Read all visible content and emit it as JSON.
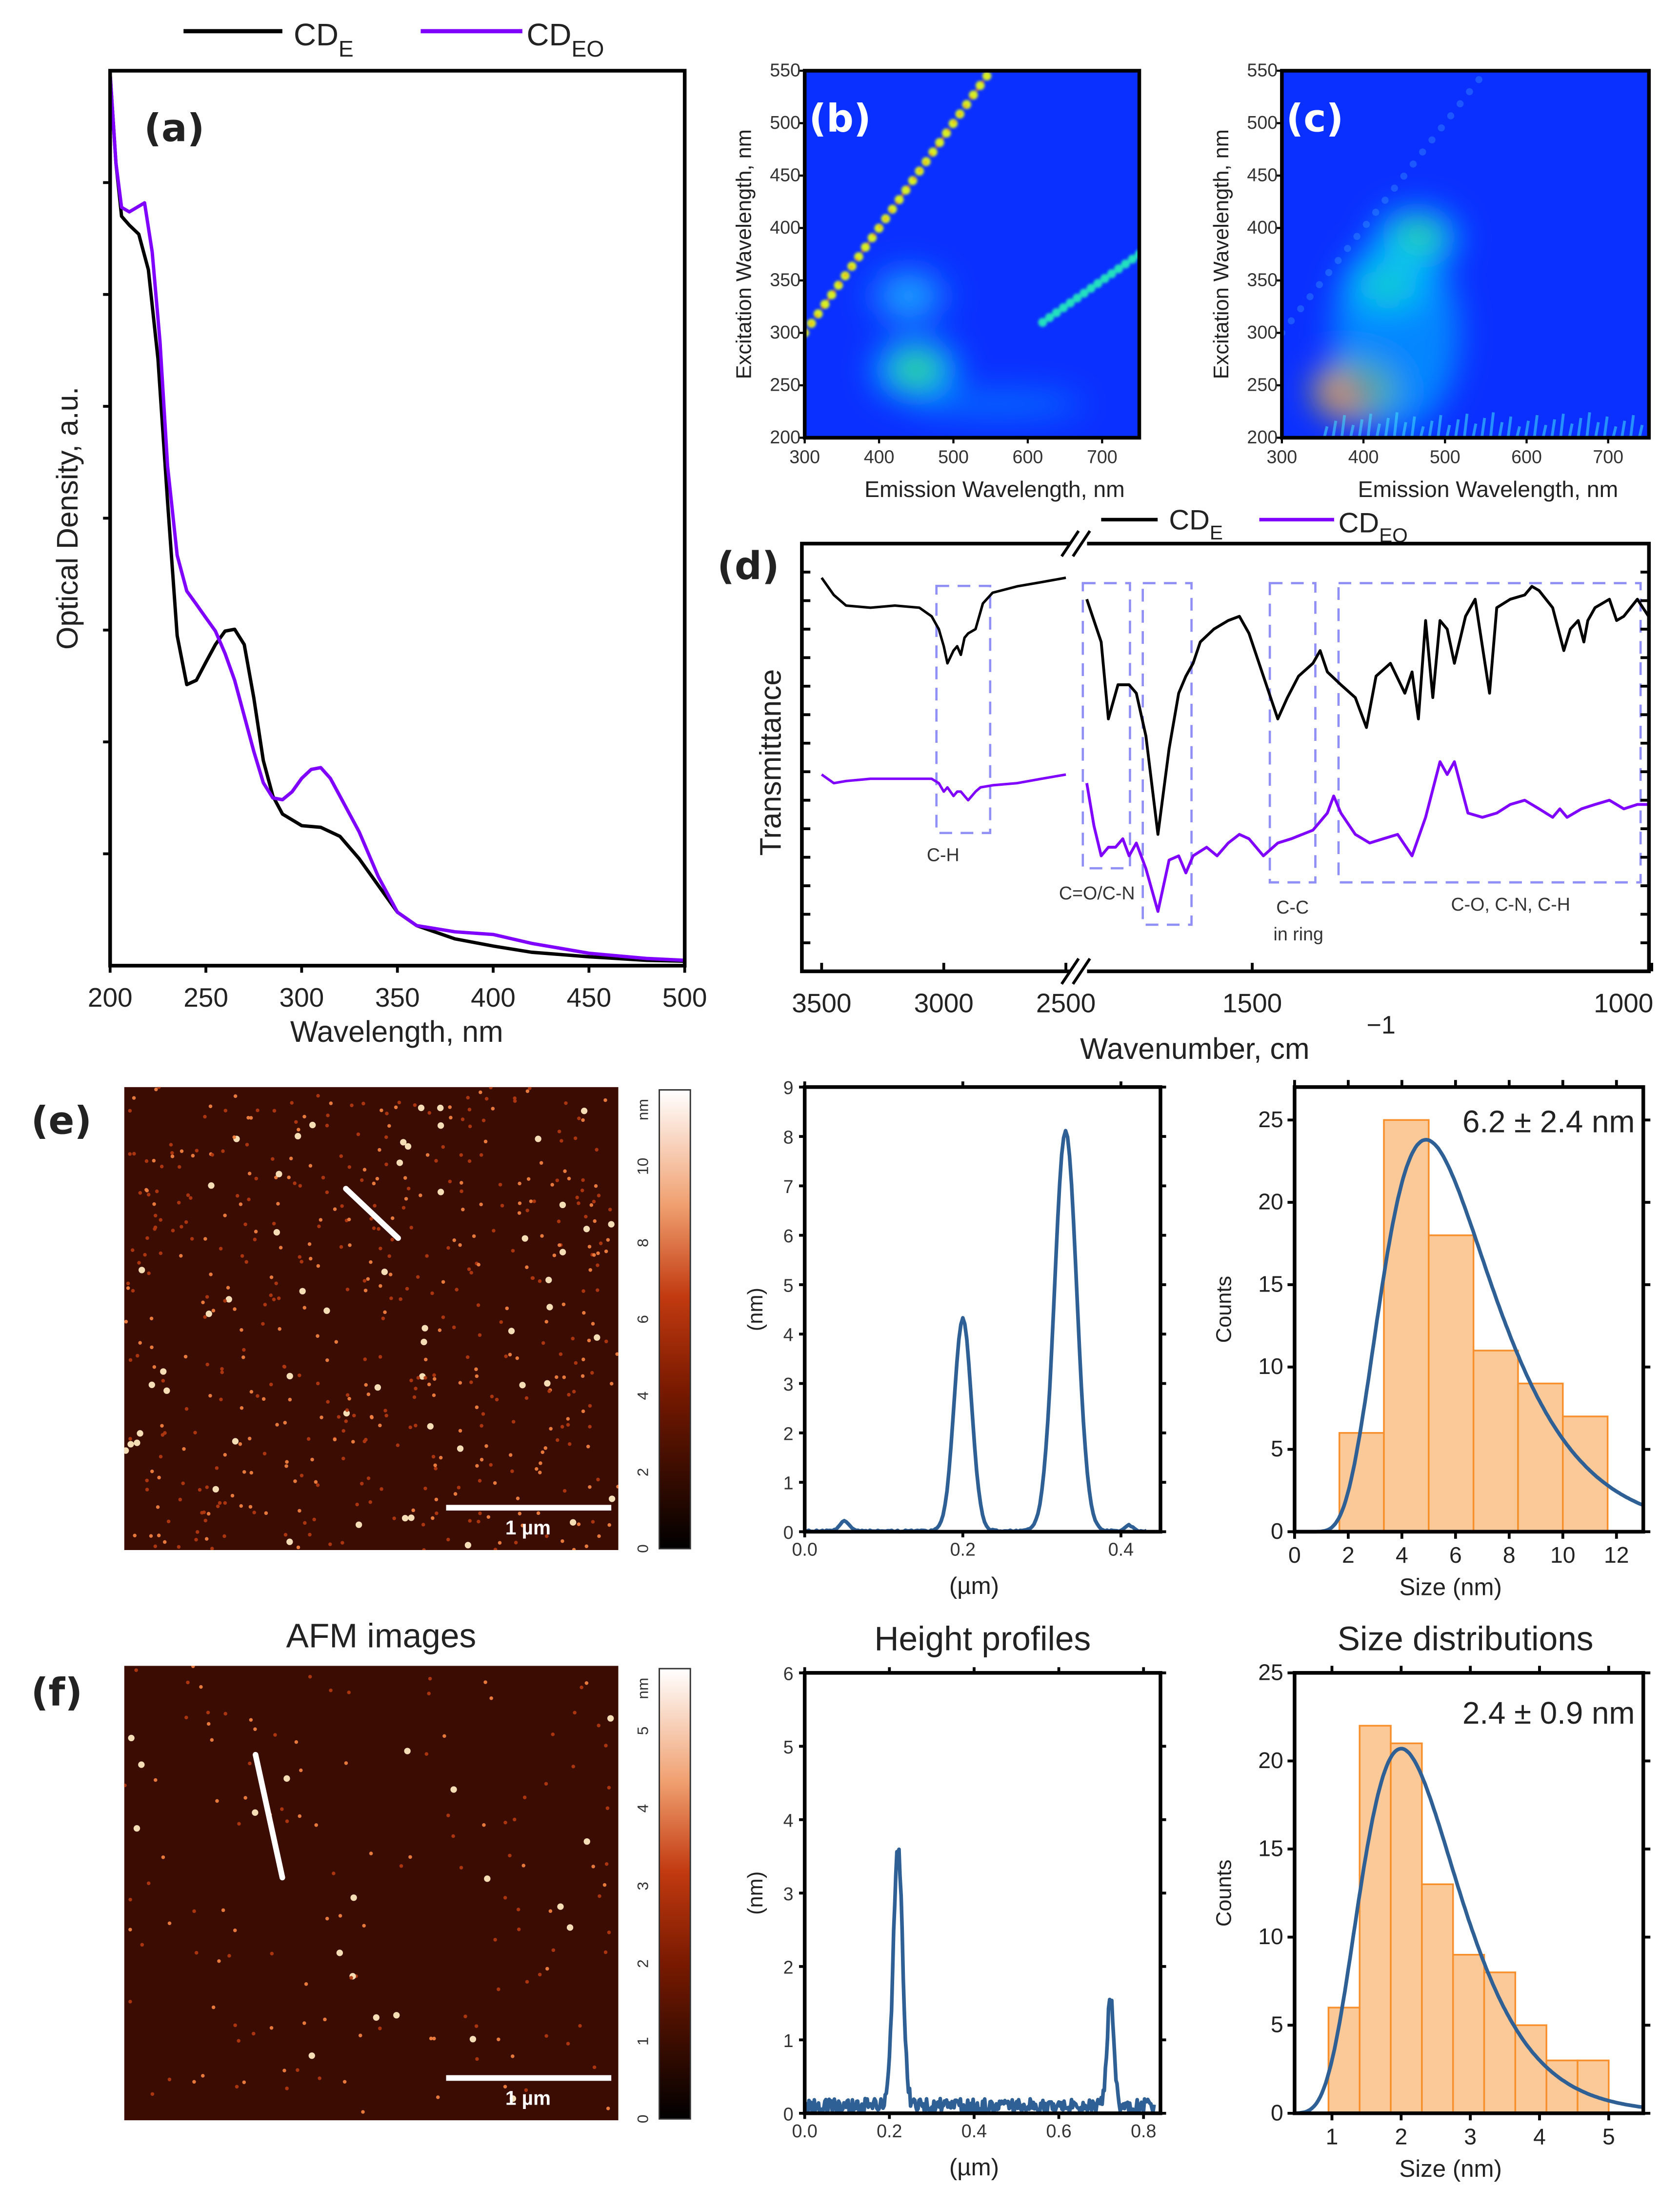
{
  "legend": {
    "series": [
      {
        "base": "CD",
        "sub": "E",
        "color": "#000000"
      },
      {
        "base": "CD",
        "sub": "EO",
        "color": "#7f00ff"
      }
    ]
  },
  "panel_labels": {
    "a": "(a)",
    "b": "(b)",
    "c": "(c)",
    "d": "(d)",
    "e": "(e)",
    "f": "(f)"
  },
  "column_titles": {
    "afm": "AFM images",
    "height": "Height profiles",
    "size": "Size distributions"
  },
  "afm": {
    "e": {
      "scale_bar": "1 µm",
      "colorbar_unit": "nm",
      "colorbar_ticks": [
        "0",
        "2",
        "4",
        "6",
        "8",
        "10"
      ],
      "colorbar_max": 12
    },
    "f": {
      "scale_bar": "1 µm",
      "colorbar_unit": "nm",
      "colorbar_ticks": [
        "0",
        "1",
        "2",
        "3",
        "4",
        "5"
      ],
      "colorbar_max": 5.8
    },
    "colors": {
      "background": "#3a0c02",
      "particle": "#ffe9c0",
      "line": "#ffffff"
    }
  },
  "chart_data": [
    {
      "id": "a",
      "type": "line",
      "xlabel": "Wavelength, nm",
      "ylabel": "Optical Density, a.u.",
      "xlim": [
        200,
        500
      ],
      "ylim": [
        0,
        1
      ],
      "x_ticks": [
        "200",
        "250",
        "300",
        "350",
        "400",
        "450",
        "500"
      ],
      "series": [
        {
          "name": "CD_E",
          "color": "#000000",
          "x": [
            200,
            203,
            206,
            210,
            215,
            220,
            225,
            230,
            235,
            240,
            245,
            250,
            255,
            260,
            265,
            270,
            275,
            280,
            285,
            290,
            300,
            310,
            320,
            330,
            340,
            350,
            360,
            380,
            400,
            420,
            450,
            480,
            500
          ],
          "y": [
            1.0,
            0.9,
            0.84,
            0.83,
            0.82,
            0.78,
            0.68,
            0.52,
            0.37,
            0.315,
            0.32,
            0.34,
            0.36,
            0.375,
            0.377,
            0.36,
            0.3,
            0.23,
            0.19,
            0.17,
            0.157,
            0.155,
            0.145,
            0.12,
            0.09,
            0.06,
            0.045,
            0.03,
            0.022,
            0.015,
            0.01,
            0.006,
            0.005
          ]
        },
        {
          "name": "CD_EO",
          "color": "#7f00ff",
          "x": [
            200,
            203,
            206,
            210,
            214,
            218,
            222,
            226,
            230,
            235,
            240,
            245,
            250,
            255,
            260,
            265,
            270,
            275,
            280,
            285,
            290,
            295,
            300,
            305,
            310,
            315,
            320,
            330,
            340,
            350,
            360,
            380,
            400,
            420,
            450,
            480,
            500
          ],
          "y": [
            1.0,
            0.9,
            0.85,
            0.845,
            0.85,
            0.855,
            0.8,
            0.7,
            0.56,
            0.46,
            0.42,
            0.405,
            0.39,
            0.375,
            0.35,
            0.32,
            0.28,
            0.24,
            0.205,
            0.188,
            0.186,
            0.195,
            0.21,
            0.22,
            0.222,
            0.21,
            0.19,
            0.15,
            0.1,
            0.06,
            0.045,
            0.038,
            0.035,
            0.025,
            0.014,
            0.008,
            0.006
          ]
        }
      ]
    },
    {
      "id": "b",
      "type": "heatmap",
      "xlabel": "Emission Wavelength, nm",
      "ylabel": "Excitation Wavelength, nm",
      "xlim": [
        300,
        750
      ],
      "ylim": [
        200,
        550
      ],
      "x_ticks": [
        "300",
        "400",
        "500",
        "600",
        "700"
      ],
      "y_ticks": [
        "200",
        "250",
        "300",
        "350",
        "400",
        "450",
        "500",
        "550"
      ],
      "features": [
        {
          "name": "rayleigh-scatter",
          "em": [
            300,
            545
          ],
          "ex": [
            300,
            545
          ],
          "intensity": 0.75
        },
        {
          "name": "second-order-scatter",
          "em": [
            620,
            750
          ],
          "ex": [
            310,
            375
          ],
          "intensity": 0.5
        },
        {
          "name": "peak-1",
          "em": 450,
          "ex": 265,
          "intensity": 0.55
        },
        {
          "name": "peak-2",
          "em": 440,
          "ex": 335,
          "intensity": 0.35
        }
      ]
    },
    {
      "id": "c",
      "type": "heatmap",
      "xlabel": "Emission Wavelength, nm",
      "ylabel": "Excitation Wavelength, nm",
      "xlim": [
        300,
        750
      ],
      "ylim": [
        200,
        550
      ],
      "x_ticks": [
        "300",
        "400",
        "500",
        "600",
        "700"
      ],
      "y_ticks": [
        "200",
        "250",
        "300",
        "350",
        "400",
        "450",
        "500",
        "550"
      ],
      "features": [
        {
          "name": "peak-1",
          "em": 390,
          "ex": 245,
          "intensity": 1.0
        },
        {
          "name": "peak-2",
          "em": 430,
          "ex": 345,
          "intensity": 0.6
        },
        {
          "name": "peak-3",
          "em": 465,
          "ex": 390,
          "intensity": 0.55
        }
      ]
    },
    {
      "id": "d",
      "type": "line",
      "xlabel": "Wavenumber, cm",
      "xlabel_sup": "−1",
      "ylabel": "Transmittance",
      "x_break": [
        2500,
        1707
      ],
      "xlim_left": [
        3500,
        2480
      ],
      "xlim_right": [
        1707,
        980
      ],
      "ylim": [
        0,
        1
      ],
      "x_ticks_left": [
        "3500",
        "3000",
        "2500"
      ],
      "x_ticks_right": [
        "1500",
        "1000"
      ],
      "bands": [
        {
          "label": "C-H",
          "range": [
            3030,
            2810
          ]
        },
        {
          "label": "C=O/C-N",
          "range": [
            1712,
            1653
          ]
        },
        {
          "label": "",
          "range": [
            1637,
            1576
          ]
        },
        {
          "label": "C-C",
          "label2": "in ring",
          "range": [
            1478,
            1421
          ]
        },
        {
          "label": "C-O, C-N, C-H",
          "range": [
            1392,
            1014
          ]
        }
      ],
      "series": [
        {
          "name": "CD_E",
          "color": "#000000",
          "left": {
            "x": [
              3500,
              3450,
              3400,
              3300,
              3200,
              3100,
              3050,
              3020,
              3000,
              2985,
              2960,
              2945,
              2930,
              2915,
              2900,
              2870,
              2840,
              2800,
              2700,
              2600,
              2500
            ],
            "y": [
              0.92,
              0.88,
              0.855,
              0.85,
              0.855,
              0.85,
              0.83,
              0.8,
              0.76,
              0.72,
              0.75,
              0.76,
              0.74,
              0.78,
              0.79,
              0.8,
              0.86,
              0.885,
              0.9,
              0.91,
              0.92
            ]
          },
          "right": {
            "x": [
              1707,
              1689,
              1680,
              1668,
              1654,
              1645,
              1633,
              1618,
              1604,
              1592,
              1583,
              1574,
              1565,
              1548,
              1530,
              1516,
              1504,
              1486,
              1468,
              1456,
              1442,
              1424,
              1415,
              1406,
              1389,
              1371,
              1357,
              1345,
              1327,
              1309,
              1300,
              1292,
              1283,
              1274,
              1265,
              1256,
              1247,
              1233,
              1221,
              1203,
              1194,
              1177,
              1159,
              1150,
              1141,
              1124,
              1110,
              1102,
              1092,
              1085,
              1080,
              1071,
              1053,
              1044,
              1035,
              1018,
              1004
            ],
            "y": [
              0.87,
              0.77,
              0.59,
              0.67,
              0.67,
              0.65,
              0.55,
              0.32,
              0.52,
              0.65,
              0.69,
              0.72,
              0.77,
              0.8,
              0.82,
              0.83,
              0.79,
              0.69,
              0.59,
              0.64,
              0.69,
              0.72,
              0.75,
              0.7,
              0.67,
              0.64,
              0.57,
              0.69,
              0.72,
              0.65,
              0.7,
              0.59,
              0.82,
              0.64,
              0.82,
              0.8,
              0.72,
              0.83,
              0.87,
              0.65,
              0.85,
              0.87,
              0.88,
              0.9,
              0.89,
              0.85,
              0.75,
              0.8,
              0.82,
              0.77,
              0.82,
              0.85,
              0.87,
              0.82,
              0.83,
              0.87,
              0.83
            ]
          }
        },
        {
          "name": "CD_EO",
          "color": "#7f00ff",
          "left": {
            "x": [
              3500,
              3450,
              3400,
              3300,
              3200,
              3100,
              3050,
              3020,
              3000,
              2985,
              2960,
              2945,
              2930,
              2915,
              2900,
              2870,
              2850,
              2800,
              2700,
              2600,
              2500
            ],
            "y": [
              0.46,
              0.44,
              0.445,
              0.45,
              0.45,
              0.45,
              0.45,
              0.44,
              0.42,
              0.43,
              0.41,
              0.42,
              0.42,
              0.41,
              0.4,
              0.42,
              0.43,
              0.435,
              0.44,
              0.45,
              0.46
            ]
          },
          "right": {
            "x": [
              1707,
              1698,
              1689,
              1680,
              1671,
              1662,
              1654,
              1645,
              1633,
              1618,
              1604,
              1592,
              1583,
              1574,
              1557,
              1544,
              1530,
              1516,
              1504,
              1486,
              1468,
              1451,
              1424,
              1406,
              1398,
              1389,
              1371,
              1353,
              1336,
              1318,
              1300,
              1283,
              1265,
              1256,
              1247,
              1230,
              1212,
              1194,
              1177,
              1159,
              1141,
              1124,
              1115,
              1106,
              1088,
              1071,
              1053,
              1035,
              1018,
              1004
            ],
            "y": [
              0.44,
              0.34,
              0.27,
              0.29,
              0.29,
              0.31,
              0.27,
              0.3,
              0.24,
              0.14,
              0.26,
              0.27,
              0.23,
              0.27,
              0.29,
              0.27,
              0.3,
              0.32,
              0.31,
              0.27,
              0.3,
              0.31,
              0.33,
              0.37,
              0.41,
              0.37,
              0.32,
              0.3,
              0.31,
              0.32,
              0.27,
              0.36,
              0.49,
              0.46,
              0.49,
              0.37,
              0.36,
              0.37,
              0.39,
              0.4,
              0.38,
              0.36,
              0.38,
              0.36,
              0.38,
              0.39,
              0.4,
              0.38,
              0.39,
              0.39
            ]
          }
        }
      ]
    },
    {
      "id": "e-height",
      "type": "line",
      "xlabel": "(µm)",
      "ylabel": "(nm)",
      "xlim": [
        0,
        0.45
      ],
      "ylim": [
        0,
        9
      ],
      "x_ticks": [
        "0.0",
        "0.2",
        "0.4"
      ],
      "y_ticks": [
        "0",
        "1",
        "2",
        "3",
        "4",
        "5",
        "6",
        "7",
        "8",
        "9"
      ],
      "peaks": [
        {
          "x": 0.05,
          "height": 0.2,
          "width": 0.006
        },
        {
          "x": 0.2,
          "height": 4.3,
          "width": 0.011
        },
        {
          "x": 0.33,
          "height": 8.1,
          "width": 0.014
        },
        {
          "x": 0.41,
          "height": 0.12,
          "width": 0.005
        }
      ],
      "color": "#2e5f95"
    },
    {
      "id": "e-size",
      "type": "bar",
      "xlabel": "Size (nm)",
      "ylabel": "Counts",
      "xlim": [
        0,
        13
      ],
      "ylim": [
        0,
        27
      ],
      "x_ticks": [
        "0",
        "2",
        "4",
        "6",
        "8",
        "10",
        "12"
      ],
      "y_ticks": [
        "0",
        "5",
        "10",
        "15",
        "20",
        "25"
      ],
      "bin_edges": [
        1.67,
        3.33,
        5.0,
        6.67,
        8.33,
        10.0,
        11.67
      ],
      "counts": [
        6,
        25,
        18,
        11,
        9,
        7
      ],
      "fit": {
        "type": "lognormal",
        "mode": 4.9,
        "peak": 23.8,
        "sigma": 0.42
      },
      "annotation": "6.2 ± 2.4 nm",
      "bar_color": "#fbc898",
      "edge_color": "#f7902c",
      "fit_color": "#2e5f95"
    },
    {
      "id": "f-height",
      "type": "line",
      "xlabel": "(µm)",
      "ylabel": "(nm)",
      "xlim": [
        0,
        0.84
      ],
      "ylim": [
        0,
        6
      ],
      "x_ticks": [
        "0.0",
        "0.2",
        "0.4",
        "0.6",
        "0.8"
      ],
      "y_ticks": [
        "0",
        "1",
        "2",
        "3",
        "4",
        "5",
        "6"
      ],
      "peaks": [
        {
          "x": 0.22,
          "height": 3.5,
          "width": 0.011
        },
        {
          "x": 0.722,
          "height": 1.45,
          "width": 0.008
        }
      ],
      "color": "#2e5f95"
    },
    {
      "id": "f-size",
      "type": "bar",
      "xlabel": "Size (nm)",
      "ylabel": "Counts",
      "xlim": [
        0.46,
        5.5
      ],
      "ylim": [
        0,
        25
      ],
      "x_ticks": [
        "1",
        "2",
        "3",
        "4",
        "5"
      ],
      "y_ticks": [
        "0",
        "5",
        "10",
        "15",
        "20",
        "25"
      ],
      "bin_edges": [
        0.95,
        1.4,
        1.85,
        2.3,
        2.75,
        3.2,
        3.65,
        4.1,
        4.55,
        5.0
      ],
      "counts": [
        6,
        22,
        21,
        13,
        9,
        8,
        5,
        3,
        3
      ],
      "fit": {
        "type": "lognormal",
        "mode": 2.0,
        "peak": 20.7,
        "sigma": 0.353
      },
      "annotation": "2.4 ± 0.9 nm",
      "bar_color": "#fbc898",
      "edge_color": "#f7902c",
      "fit_color": "#2e5f95"
    }
  ]
}
